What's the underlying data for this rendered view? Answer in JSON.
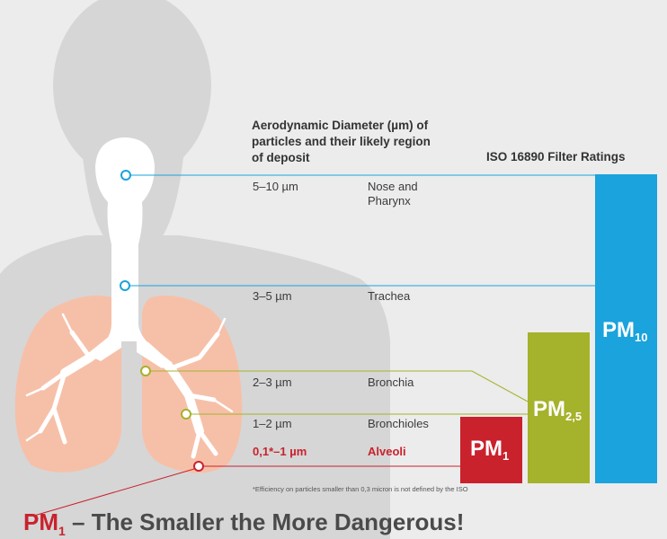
{
  "header": {
    "line1": "Aerodynamic Diameter (µm) of",
    "line2": "particles and their likely region",
    "line3": "of deposit"
  },
  "iso_title": "ISO 16890 Filter Ratings",
  "rows": [
    {
      "size": "5–10 µm",
      "region_line1": "Nose and",
      "region_line2": "Pharynx",
      "color": "#1aa3dc"
    },
    {
      "size": "3–5 µm",
      "region_line1": "Trachea",
      "region_line2": "",
      "color": "#1aa3dc"
    },
    {
      "size": "2–3 µm",
      "region_line1": "Bronchia",
      "region_line2": "",
      "color": "#a5b22b"
    },
    {
      "size": "1–2 µm",
      "region_line1": "Bronchioles",
      "region_line2": "",
      "color": "#a5b22b"
    },
    {
      "size": "0,1*–1 µm",
      "region_line1": "Alveoli",
      "region_line2": "",
      "color": "#c9222d"
    }
  ],
  "bars": [
    {
      "main": "PM",
      "sub": "1",
      "color": "#c9222d"
    },
    {
      "main": "PM",
      "sub": "2,5",
      "color": "#a5b22b"
    },
    {
      "main": "PM",
      "sub": "10",
      "color": "#1aa3dc"
    }
  ],
  "footnote": "*Efficiency on particles smaller than 0,3 micron is not defined by the ISO",
  "tagline": {
    "pm": "PM",
    "sub": "1",
    "rest": " – The Smaller the More Dangerous!"
  },
  "colors": {
    "silhouette": "#d6d6d6",
    "lung": "#f6c0a8",
    "airway": "#ffffff"
  }
}
